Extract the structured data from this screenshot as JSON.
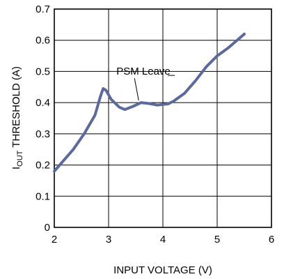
{
  "chart_data": {
    "type": "line",
    "xlabel": "INPUT VOLTAGE (V)",
    "ylabel_main": "I",
    "ylabel_sub": "OUT",
    "ylabel_rest": " THRESHOLD (A)",
    "xlim": [
      2,
      6
    ],
    "ylim": [
      0,
      0.7
    ],
    "x_ticks": [
      "2",
      "3",
      "4",
      "5",
      "6"
    ],
    "y_ticks": [
      "0",
      "0.1",
      "0.2",
      "0.3",
      "0.4",
      "0.5",
      "0.6",
      "0.7"
    ],
    "grid": true,
    "series": [
      {
        "color": "#5a6a9c",
        "points": [
          [
            2.0,
            0.18
          ],
          [
            2.15,
            0.21
          ],
          [
            2.35,
            0.25
          ],
          [
            2.55,
            0.3
          ],
          [
            2.75,
            0.36
          ],
          [
            2.85,
            0.42
          ],
          [
            2.9,
            0.445
          ],
          [
            2.95,
            0.44
          ],
          [
            3.05,
            0.41
          ],
          [
            3.2,
            0.385
          ],
          [
            3.3,
            0.378
          ],
          [
            3.45,
            0.388
          ],
          [
            3.6,
            0.4
          ],
          [
            3.75,
            0.397
          ],
          [
            3.9,
            0.392
          ],
          [
            4.1,
            0.396
          ],
          [
            4.2,
            0.405
          ],
          [
            4.4,
            0.43
          ],
          [
            4.6,
            0.47
          ],
          [
            4.8,
            0.515
          ],
          [
            5.0,
            0.55
          ],
          [
            5.2,
            0.575
          ],
          [
            5.4,
            0.605
          ],
          [
            5.5,
            0.62
          ]
        ]
      }
    ],
    "annotation": {
      "text": "PSM Leave",
      "point": [
        3.58,
        0.4
      ]
    }
  }
}
